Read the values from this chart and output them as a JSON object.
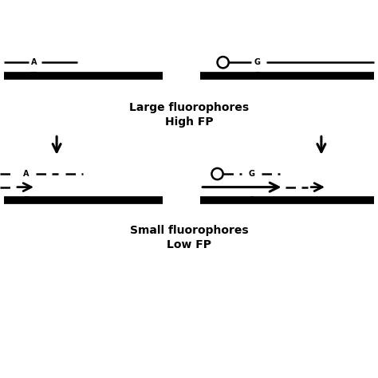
{
  "bg_color": "#ffffff",
  "large_label": "Large fluorophores",
  "large_sublabel": "High FP",
  "small_label": "Small fluorophores",
  "small_sublabel": "Low FP",
  "label_fontsize": 10,
  "sublabel_fontsize": 10
}
